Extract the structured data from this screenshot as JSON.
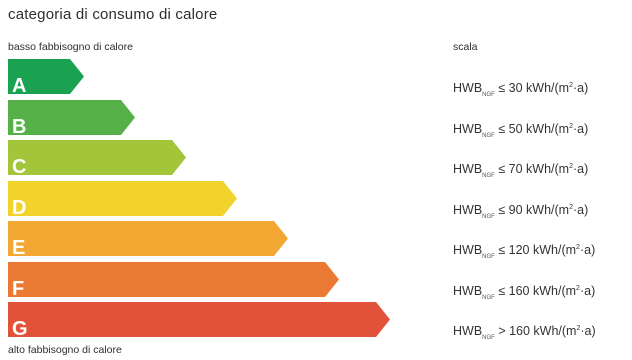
{
  "title": "categoria di consumo di calore",
  "low_label": "basso fabbisogno di calore",
  "high_label": "alto fabbisogno di calore",
  "scale_label": "scala",
  "classes": [
    {
      "letter": "A",
      "color": "#1aa251",
      "prefix": "HWB",
      "sub": "NGF",
      "op": "≤",
      "value": "30",
      "unit_pre": "kWh/(m",
      "unit_sup": "2",
      "unit_post": "·a)"
    },
    {
      "letter": "B",
      "color": "#55b047",
      "prefix": "HWB",
      "sub": "NGF",
      "op": "≤",
      "value": "50",
      "unit_pre": "kWh/(m",
      "unit_sup": "2",
      "unit_post": "·a)"
    },
    {
      "letter": "C",
      "color": "#a2c539",
      "prefix": "HWB",
      "sub": "NGF",
      "op": "≤",
      "value": "70",
      "unit_pre": "kWh/(m",
      "unit_sup": "2",
      "unit_post": "·a)"
    },
    {
      "letter": "D",
      "color": "#f2d32c",
      "prefix": "HWB",
      "sub": "NGF",
      "op": "≤",
      "value": "90",
      "unit_pre": "kWh/(m",
      "unit_sup": "2",
      "unit_post": "·a)"
    },
    {
      "letter": "E",
      "color": "#f1a732",
      "prefix": "HWB",
      "sub": "NGF",
      "op": "≤",
      "value": "120",
      "unit_pre": "kWh/(m",
      "unit_sup": "2",
      "unit_post": "·a)"
    },
    {
      "letter": "F",
      "color": "#ea7a33",
      "prefix": "HWB",
      "sub": "NGF",
      "op": "≤",
      "value": "160",
      "unit_pre": "kWh/(m",
      "unit_sup": "2",
      "unit_post": "·a)"
    },
    {
      "letter": "G",
      "color": "#e2523a",
      "prefix": "HWB",
      "sub": "NGF",
      "op": ">",
      "value": "160",
      "unit_pre": "kWh/(m",
      "unit_sup": "2",
      "unit_post": "·a)"
    }
  ]
}
